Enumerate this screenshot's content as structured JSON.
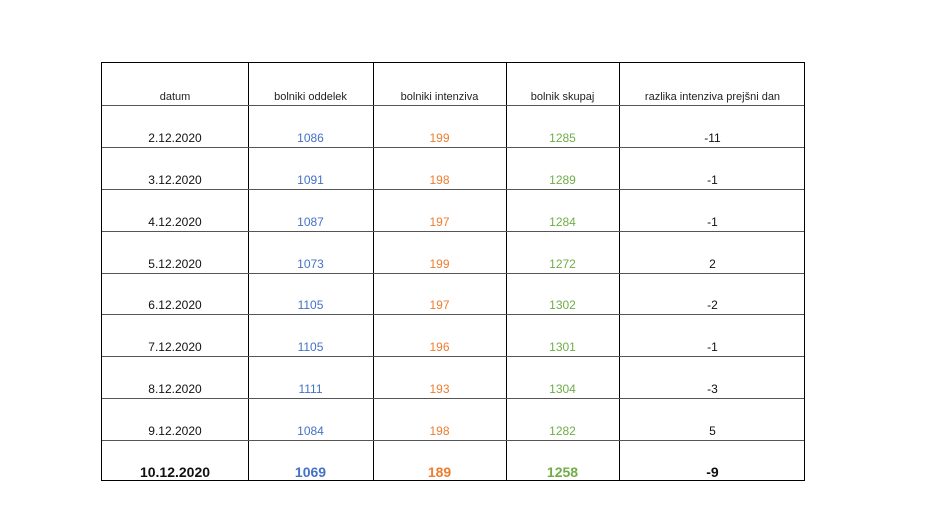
{
  "table": {
    "headers": [
      "datum",
      "bolniki oddelek",
      "bolniki intenziva",
      "bolnik skupaj",
      "razlika intenziva prejšni dan"
    ],
    "rows": [
      [
        "2.12.2020",
        "1086",
        "199",
        "1285",
        "-11"
      ],
      [
        "3.12.2020",
        "1091",
        "198",
        "1289",
        "-1"
      ],
      [
        "4.12.2020",
        "1087",
        "197",
        "1284",
        "-1"
      ],
      [
        "5.12.2020",
        "1073",
        "199",
        "1272",
        "2"
      ],
      [
        "6.12.2020",
        "1105",
        "197",
        "1302",
        "-2"
      ],
      [
        "7.12.2020",
        "1105",
        "196",
        "1301",
        "-1"
      ],
      [
        "8.12.2020",
        "1111",
        "193",
        "1304",
        "-3"
      ],
      [
        "9.12.2020",
        "1084",
        "198",
        "1282",
        "5"
      ],
      [
        "10.12.2020",
        "1069",
        "189",
        "1258",
        "-9"
      ]
    ]
  }
}
